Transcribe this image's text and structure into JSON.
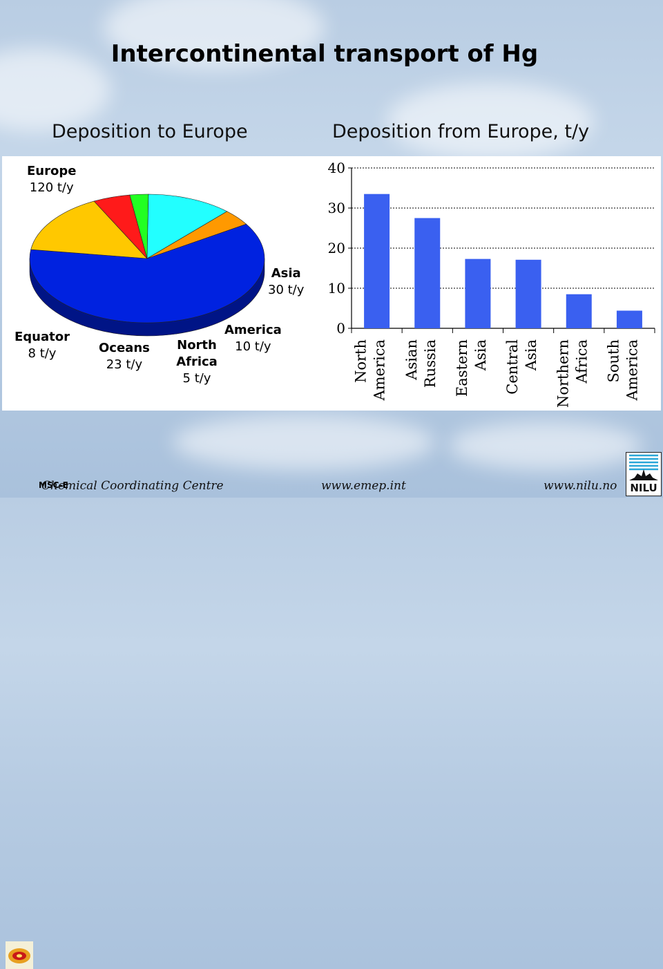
{
  "title": "Intercontinental transport of Hg",
  "subtitle_left": "Deposition to Europe",
  "subtitle_right": "Deposition from Europe, t/y",
  "chart_data": [
    {
      "type": "pie",
      "slices": [
        {
          "name": "Europe",
          "label": "120 t/y",
          "value": 120,
          "color": "#0022e0"
        },
        {
          "name": "Asia",
          "label": "30 t/y",
          "value": 30,
          "color": "#ffc800"
        },
        {
          "name": "America",
          "label": "10 t/y",
          "value": 10,
          "color": "#ff1a1a"
        },
        {
          "name": "North Africa",
          "label": "5 t/y",
          "value": 5,
          "color": "#22ff22"
        },
        {
          "name": "Oceans",
          "label": "23 t/y",
          "value": 23,
          "color": "#22ffff"
        },
        {
          "name": "Equator",
          "label": "8 t/y",
          "value": 8,
          "color": "#ff9900"
        }
      ]
    },
    {
      "type": "bar",
      "categories": [
        "North America",
        "Asian Russia",
        "Eastern Asia",
        "Central Asia",
        "Northern Africa",
        "South America"
      ],
      "values": [
        33.5,
        27.5,
        17.3,
        17.1,
        8.5,
        4.4
      ],
      "ylim": [
        0,
        40
      ],
      "yticks": [
        0,
        10,
        20,
        30,
        40
      ],
      "grid": true,
      "bar_color": "#3a60f0"
    }
  ],
  "footer": {
    "org": "Chemical Coordinating Centre",
    "msc": "MSC-E",
    "url1": "www.emep.int",
    "url2": "www.nilu.no",
    "nilu": "NILU"
  }
}
